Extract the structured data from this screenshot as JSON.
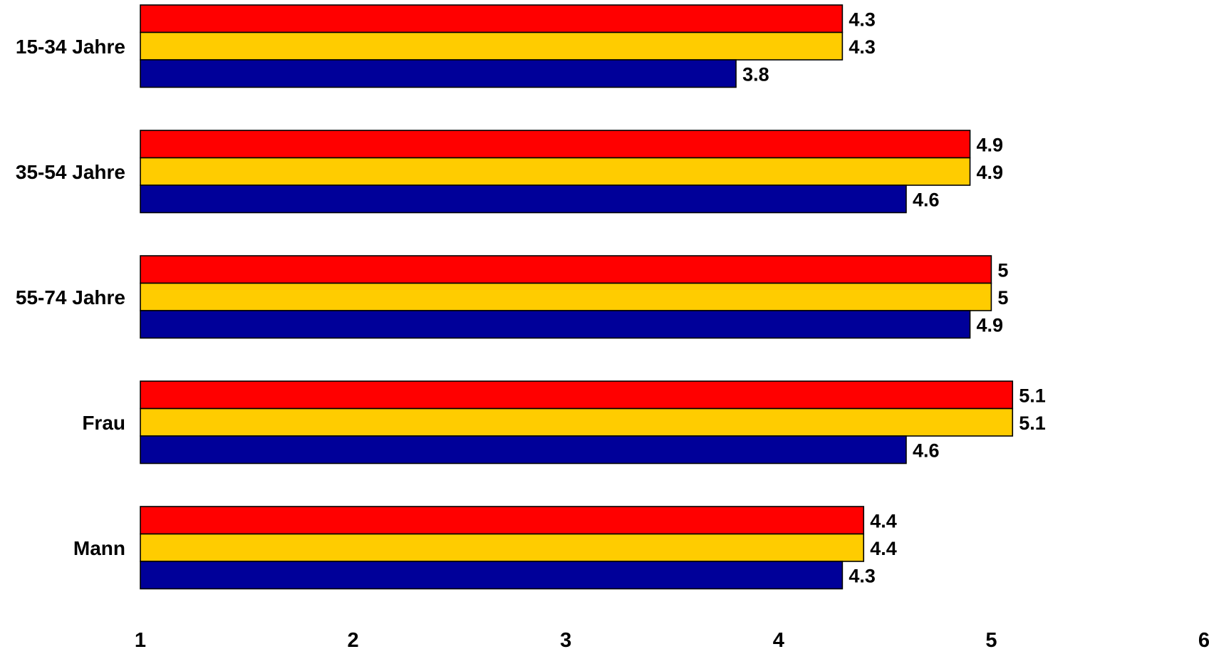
{
  "chart_data": {
    "type": "bar",
    "orientation": "horizontal",
    "categories": [
      "15-34 Jahre",
      "35-54 Jahre",
      "55-74 Jahre",
      "Frau",
      "Mann"
    ],
    "series": [
      {
        "color": "#ff0000",
        "values": [
          4.3,
          4.9,
          5.0,
          5.1,
          4.4
        ],
        "labels": [
          "4.3",
          "4.9",
          "5",
          "5.1",
          "4.4"
        ]
      },
      {
        "color": "#ffcc00",
        "values": [
          4.3,
          4.9,
          5.0,
          5.1,
          4.4
        ],
        "labels": [
          "4.3",
          "4.9",
          "5",
          "5.1",
          "4.4"
        ]
      },
      {
        "color": "#000099",
        "values": [
          3.8,
          4.6,
          4.9,
          4.6,
          4.3
        ],
        "labels": [
          "3.8",
          "4.6",
          "4.9",
          "4.6",
          "4.3"
        ]
      }
    ],
    "xlim": [
      1,
      6
    ],
    "xticks": [
      "1",
      "2",
      "3",
      "4",
      "5",
      "6"
    ],
    "grid": false,
    "legend": false
  }
}
